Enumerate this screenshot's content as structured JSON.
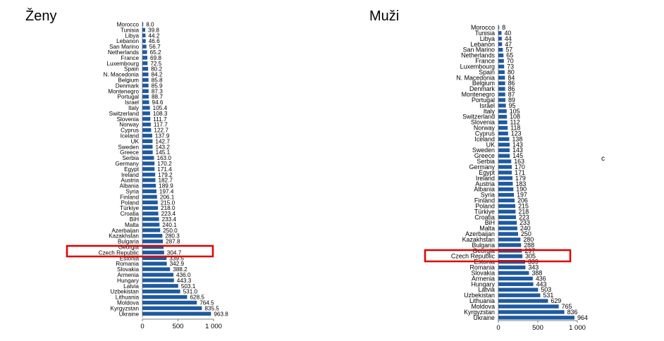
{
  "chart_data": [
    {
      "type": "bar",
      "orientation": "horizontal",
      "title": "Ženy",
      "categories": [
        "Morocco",
        "Tunisia",
        "Libya",
        "Lebanon",
        "San Marino",
        "Netherlands",
        "France",
        "Luxembourg",
        "Spain",
        "N. Macedonia",
        "Belgium",
        "Denmark",
        "Montenegro",
        "Portugal",
        "Israel",
        "Italy",
        "Switzerland",
        "Slovenia",
        "Norway",
        "Cyprus",
        "Iceland",
        "UK",
        "Sweden",
        "Greece",
        "Serbia",
        "Germany",
        "Egypt",
        "Ireland",
        "Austria",
        "Albania",
        "Syria",
        "Finland",
        "Poland",
        "Türkiye",
        "Croatia",
        "BiH",
        "Malta",
        "Azerbaijan",
        "Kazakhstan",
        "Bulgaria",
        "Georgia",
        "Czech Republic",
        "Estonia",
        "Romania",
        "Slovakia",
        "Armenia",
        "Hungary",
        "Latvia",
        "Uzbekistan",
        "Lithuania",
        "Moldova",
        "Kyrgyzstan",
        "Ukraine"
      ],
      "values": [
        8.0,
        39.8,
        44.2,
        46.6,
        56.7,
        65.2,
        69.8,
        72.5,
        80.2,
        84.2,
        85.8,
        85.9,
        87.3,
        88.7,
        94.6,
        105.4,
        108.3,
        111.7,
        117.7,
        122.7,
        137.9,
        142.7,
        143.2,
        145.1,
        163.0,
        170.2,
        171.4,
        179.2,
        182.7,
        189.9,
        197.4,
        206.1,
        215.0,
        218.0,
        223.4,
        233.4,
        240.1,
        250.0,
        280.3,
        287.8,
        297.0,
        304.7,
        339.5,
        342.9,
        388.2,
        436.0,
        443.3,
        503.1,
        531.0,
        628.5,
        764.5,
        835.5,
        963.8
      ],
      "value_labels": [
        "8.0",
        "39.8",
        "44.2",
        "46.6",
        "56.7",
        "65.2",
        "69.8",
        "72.5",
        "80.2",
        "84.2",
        "85.8",
        "85.9",
        "87.3",
        "88.7",
        "94.6",
        "105.4",
        "108.3",
        "111.7",
        "117.7",
        "122.7",
        "137.9",
        "142.7",
        "143.2",
        "145.1",
        "163.0",
        "170.2",
        "171.4",
        "179.2",
        "182.7",
        "189.9",
        "197.4",
        "206.1",
        "215.0",
        "218.0",
        "223.4",
        "233.4",
        "240.1",
        "250.0",
        "280.3",
        "287.8",
        "",
        "304.7",
        "339.5",
        "342.9",
        "388.2",
        "436.0",
        "443.3",
        "503.1",
        "531.0",
        "628.5",
        "764.5",
        "835.5",
        "963.8"
      ],
      "xticks": [
        "0",
        "500",
        "1 000"
      ],
      "xlim": [
        0,
        1000
      ],
      "highlight": "Czech Republic",
      "highlight_color": "#e00000",
      "bar_color": "#1f5aa0"
    },
    {
      "type": "bar",
      "orientation": "horizontal",
      "title": "Muži",
      "categories": [
        "Morocco",
        "Tunisia",
        "Libya",
        "Lebanon",
        "San Marino",
        "Netherlands",
        "France",
        "Luxembourg",
        "Spain",
        "N. Macedonia",
        "Belgium",
        "Denmark",
        "Montenegro",
        "Portugal",
        "Israel",
        "Italy",
        "Switzerland",
        "Slovenia",
        "Norway",
        "Cyprus",
        "Iceland",
        "UK",
        "Sweden",
        "Greece",
        "Serbia",
        "Germany",
        "Egypt",
        "Ireland",
        "Austria",
        "Albania",
        "Syria",
        "Finland",
        "Poland",
        "Türkiye",
        "Croatia",
        "BiH",
        "Malta",
        "Azerbaijan",
        "Kazakhstan",
        "Bulgaria",
        "Georgia",
        "Czech Republic",
        "Estonia",
        "Romania",
        "Slovakia",
        "Armenia",
        "Hungary",
        "Latvia",
        "Uzbekistan",
        "Lithuania",
        "Moldova",
        "Kyrgyzstan",
        "Ukraine"
      ],
      "values": [
        8,
        40,
        44,
        47,
        57,
        65,
        70,
        73,
        80,
        84,
        86,
        86,
        87,
        89,
        95,
        105,
        108,
        112,
        118,
        123,
        138,
        143,
        143,
        145,
        163,
        170,
        171,
        179,
        183,
        190,
        197,
        206,
        215,
        218,
        223,
        233,
        240,
        250,
        280,
        288,
        297,
        305,
        339,
        343,
        388,
        436,
        443,
        503,
        531,
        629,
        765,
        836,
        964
      ],
      "value_labels": [
        "8",
        "40",
        "44",
        "47",
        "57",
        "65",
        "70",
        "73",
        "80",
        "84",
        "86",
        "86",
        "87",
        "89",
        "95",
        "105",
        "108",
        "112",
        "118",
        "123",
        "138",
        "143",
        "143",
        "145",
        "163",
        "170",
        "171",
        "179",
        "183",
        "190",
        "197",
        "206",
        "215",
        "218",
        "223",
        "233",
        "240",
        "250",
        "280",
        "288",
        "297",
        "305",
        "339",
        "343",
        "388",
        "436",
        "443",
        "503",
        "531",
        "629",
        "765",
        "836",
        "964"
      ],
      "xticks": [
        "0",
        "500",
        "1 000"
      ],
      "xlim": [
        0,
        1000
      ],
      "highlight": "Czech Republic",
      "highlight_color": "#e00000",
      "bar_color": "#1f5aa0"
    }
  ],
  "stray_text": "c"
}
